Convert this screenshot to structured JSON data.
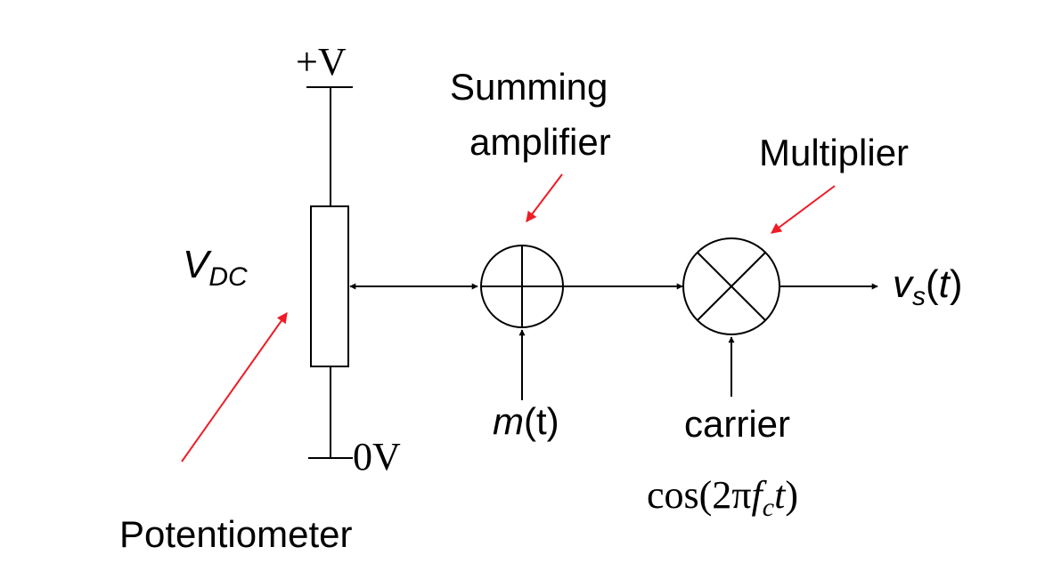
{
  "labels": {
    "supply_plus": "+V",
    "supply_zero": "0V",
    "vdc_main": "V",
    "vdc_sub": "DC",
    "summing_line1": "Summing",
    "summing_line2": "amplifier",
    "multiplier": "Multiplier",
    "potentiometer": "Potentiometer",
    "message_fn": "m",
    "message_arg": "(t)",
    "carrier": "carrier",
    "carrier_cos": "cos(2π",
    "carrier_f": "f",
    "carrier_c": "c",
    "carrier_t": "t",
    "carrier_close": ")",
    "output_v": "v",
    "output_sub": "s",
    "output_arg_open": "(",
    "output_arg_t": "t",
    "output_arg_close": ")"
  },
  "colors": {
    "line": "#000000",
    "pointer": "#ee1c25",
    "background": "#ffffff"
  }
}
